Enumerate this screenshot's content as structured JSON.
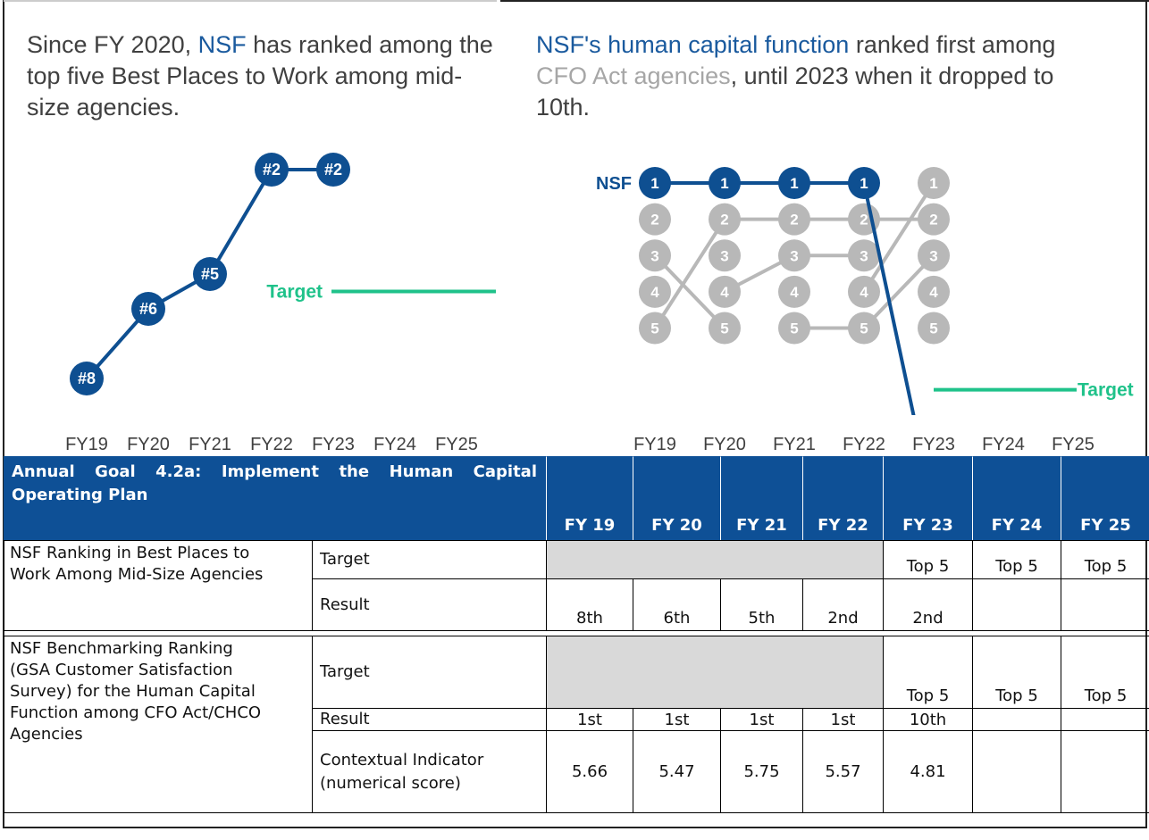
{
  "chart_data": [
    {
      "type": "line",
      "title_parts": [
        {
          "text": "Since FY 2020, ",
          "color": "#404040"
        },
        {
          "text": "NSF",
          "color": "#1a5a9e"
        },
        {
          "text": " has ranked among the top five Best Places to Work among mid-size agencies.",
          "color": "#404040"
        }
      ],
      "categories": [
        "FY19",
        "FY20",
        "FY21",
        "FY22",
        "FY23",
        "FY24",
        "FY25"
      ],
      "values": [
        8,
        6,
        5,
        2,
        2,
        null,
        null
      ],
      "value_labels": [
        "#8",
        "#6",
        "#5",
        "#2",
        "#2",
        null,
        null
      ],
      "color": "#0e4f91",
      "ylim": [
        1,
        9
      ],
      "y_inverted": true,
      "target": {
        "label": "Target",
        "value": 5.5,
        "from": "FY23",
        "color": "#1fc28a"
      }
    },
    {
      "type": "bump",
      "title_parts": [
        {
          "text": "NSF's human capital function",
          "color": "#1a5a9e"
        },
        {
          "text": " ranked first among ",
          "color": "#404040"
        },
        {
          "text": "CFO Act agencies",
          "color": "#a6a6a6"
        },
        {
          "text": ", until 2023 when it dropped to 10th.",
          "color": "#404040"
        }
      ],
      "categories": [
        "FY19",
        "FY20",
        "FY21",
        "FY22",
        "FY23",
        "FY24",
        "FY25"
      ],
      "ylim": [
        1,
        7.4
      ],
      "y_inverted": true,
      "ranks": [
        [
          2,
          3,
          4,
          5
        ],
        [
          2,
          3,
          4,
          5
        ],
        [
          2,
          3,
          4,
          5
        ],
        [
          2,
          3,
          4,
          5
        ],
        [
          1,
          2,
          3,
          4,
          5
        ],
        [],
        []
      ],
      "rank_color": "#b8b8b8",
      "paths": [
        [
          5,
          2,
          2,
          2,
          2,
          null,
          null
        ],
        [
          3,
          5,
          null,
          null,
          null,
          null,
          null
        ],
        [
          null,
          4,
          3,
          3,
          null,
          null,
          null
        ],
        [
          null,
          null,
          5,
          5,
          3,
          null,
          null
        ],
        [
          null,
          null,
          null,
          4,
          1,
          null,
          null
        ]
      ],
      "series": [
        {
          "name": "NSF",
          "color": "#0e4f91",
          "values": [
            1,
            1,
            1,
            1,
            10,
            null,
            null
          ]
        }
      ],
      "target": {
        "label": "Target",
        "value": 6.7,
        "from": "FY23",
        "color": "#1fc28a"
      }
    }
  ],
  "table": {
    "goal": "Annual Goal 4.2a: Implement the Human Capital Operating Plan",
    "header_color": "#0e5096",
    "shade_color": "#d9d9d9",
    "columns": [
      "FY 19",
      "FY 20",
      "FY 21",
      "FY 22",
      "FY 23",
      "FY 24",
      "FY 25"
    ],
    "groups": [
      {
        "label": "NSF Ranking in Best Places to Work Among Mid-Size Agencies",
        "rows": [
          {
            "label": "Target",
            "cells": [
              null,
              null,
              null,
              null,
              "Top 5",
              "Top 5",
              "Top 5"
            ],
            "shaded_through": "FY 22"
          },
          {
            "label": "Result",
            "cells": [
              "8th",
              "6th",
              "5th",
              "2nd",
              "2nd",
              null,
              null
            ]
          }
        ]
      },
      {
        "label": "NSF Benchmarking Ranking (GSA Customer Satisfaction Survey) for the Human Capital Function among CFO Act/CHCO Agencies",
        "rows": [
          {
            "label": "Target",
            "cells": [
              null,
              null,
              null,
              null,
              "Top 5",
              "Top 5",
              "Top 5"
            ],
            "shaded_through": "FY 22"
          },
          {
            "label": "Result",
            "cells": [
              "1st",
              "1st",
              "1st",
              "1st",
              "10th",
              null,
              null
            ]
          },
          {
            "label": "Contextual Indicator (numerical score)",
            "cells": [
              5.66,
              5.47,
              5.75,
              5.57,
              4.81,
              null,
              null
            ]
          }
        ]
      }
    ]
  }
}
